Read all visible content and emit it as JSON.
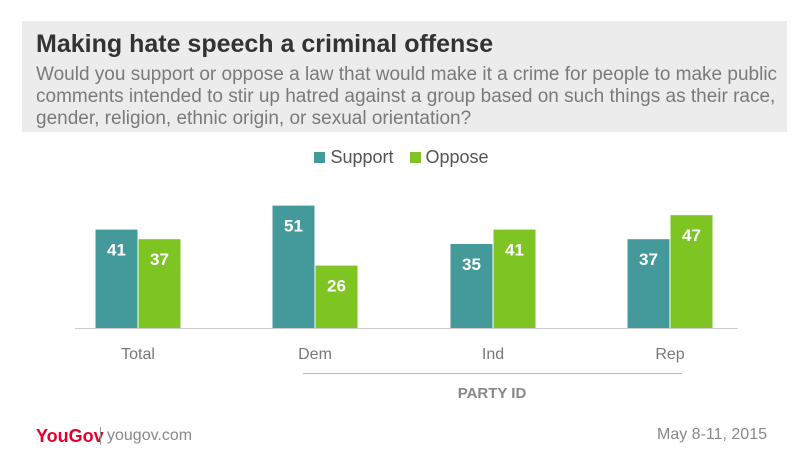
{
  "colors": {
    "support": "#44999b",
    "oppose": "#7ec422",
    "header_bg": "#ececec",
    "brand": "#e4002b"
  },
  "chart_data": {
    "type": "bar",
    "title": "Making hate speech a criminal offense",
    "subtitle": "Would you support or oppose a law that would make it a crime for people to make public comments intended to stir up hatred against a group based on such things as their race, gender, religion, ethnic origin, or sexual orientation?",
    "categories": [
      "Total",
      "Dem",
      "Ind",
      "Rep"
    ],
    "series": [
      {
        "name": "Support",
        "values": [
          41,
          51,
          35,
          37
        ]
      },
      {
        "name": "Oppose",
        "values": [
          37,
          26,
          41,
          47
        ]
      }
    ],
    "group_label": "PARTY ID",
    "xlabel": "",
    "ylabel": "",
    "ylim": [
      0,
      55
    ],
    "grid": false,
    "legend_position": "top-center"
  },
  "footer": {
    "logo": "YouGov",
    "url": "yougov.com",
    "date": "May 8-11, 2015"
  }
}
